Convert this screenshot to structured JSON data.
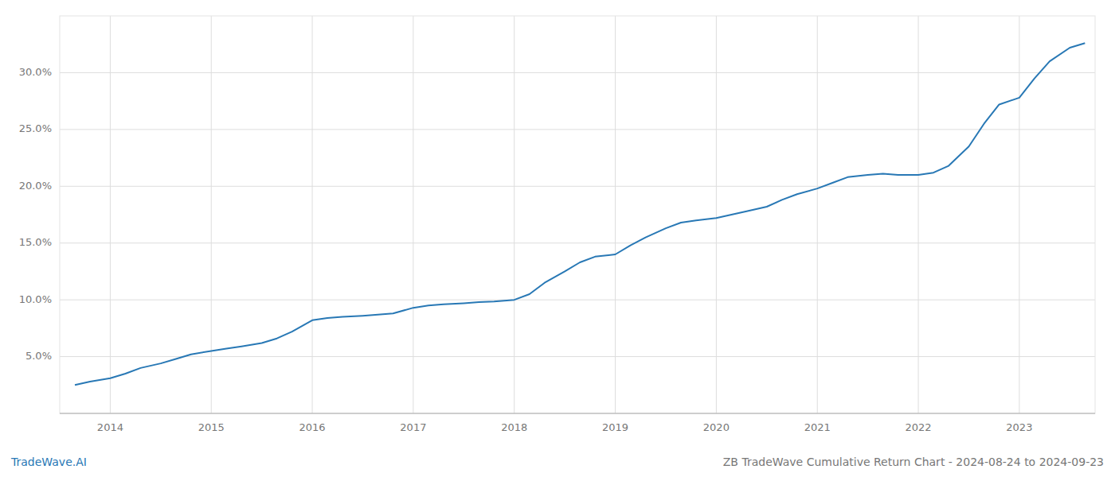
{
  "chart_data": {
    "type": "line",
    "title": "ZB TradeWave Cumulative Return Chart - 2024-08-24 to 2024-09-23",
    "annotations": [
      "TradeWave.AI"
    ],
    "color": "#2878b5",
    "grid": true,
    "x": [
      2013.65,
      2013.8,
      2014.0,
      2014.15,
      2014.3,
      2014.5,
      2014.65,
      2014.8,
      2015.0,
      2015.15,
      2015.3,
      2015.5,
      2015.65,
      2015.8,
      2016.0,
      2016.15,
      2016.3,
      2016.5,
      2016.65,
      2016.8,
      2017.0,
      2017.15,
      2017.3,
      2017.5,
      2017.65,
      2017.8,
      2018.0,
      2018.15,
      2018.3,
      2018.5,
      2018.65,
      2018.8,
      2019.0,
      2019.15,
      2019.3,
      2019.5,
      2019.65,
      2019.8,
      2020.0,
      2020.15,
      2020.3,
      2020.5,
      2020.65,
      2020.8,
      2021.0,
      2021.15,
      2021.3,
      2021.5,
      2021.65,
      2021.8,
      2022.0,
      2022.15,
      2022.3,
      2022.5,
      2022.65,
      2022.8,
      2023.0,
      2023.15,
      2023.3,
      2023.5,
      2023.65
    ],
    "values": [
      2.5,
      2.8,
      3.1,
      3.5,
      4.0,
      4.4,
      4.8,
      5.2,
      5.5,
      5.7,
      5.9,
      6.2,
      6.6,
      7.2,
      8.2,
      8.4,
      8.5,
      8.6,
      8.7,
      8.8,
      9.3,
      9.5,
      9.6,
      9.7,
      9.8,
      9.85,
      10.0,
      10.5,
      11.5,
      12.5,
      13.3,
      13.8,
      14.0,
      14.8,
      15.5,
      16.3,
      16.8,
      17.0,
      17.2,
      17.5,
      17.8,
      18.2,
      18.8,
      19.3,
      19.8,
      20.3,
      20.8,
      21.0,
      21.1,
      21.0,
      21.0,
      21.2,
      21.8,
      23.5,
      25.5,
      27.2,
      27.8,
      29.5,
      31.0,
      32.2,
      32.6
    ],
    "xlim": [
      2013.5,
      2023.75
    ],
    "xticks": [
      2014,
      2015,
      2016,
      2017,
      2018,
      2019,
      2020,
      2021,
      2022,
      2023
    ],
    "ylim": [
      0,
      35
    ],
    "yticks": [
      {
        "value": 5.0,
        "label": "5.0%"
      },
      {
        "value": 10.0,
        "label": "10.0%"
      },
      {
        "value": 15.0,
        "label": "15.0%"
      },
      {
        "value": 20.0,
        "label": "20.0%"
      },
      {
        "value": 25.0,
        "label": "25.0%"
      },
      {
        "value": 30.0,
        "label": "30.0%"
      }
    ]
  }
}
